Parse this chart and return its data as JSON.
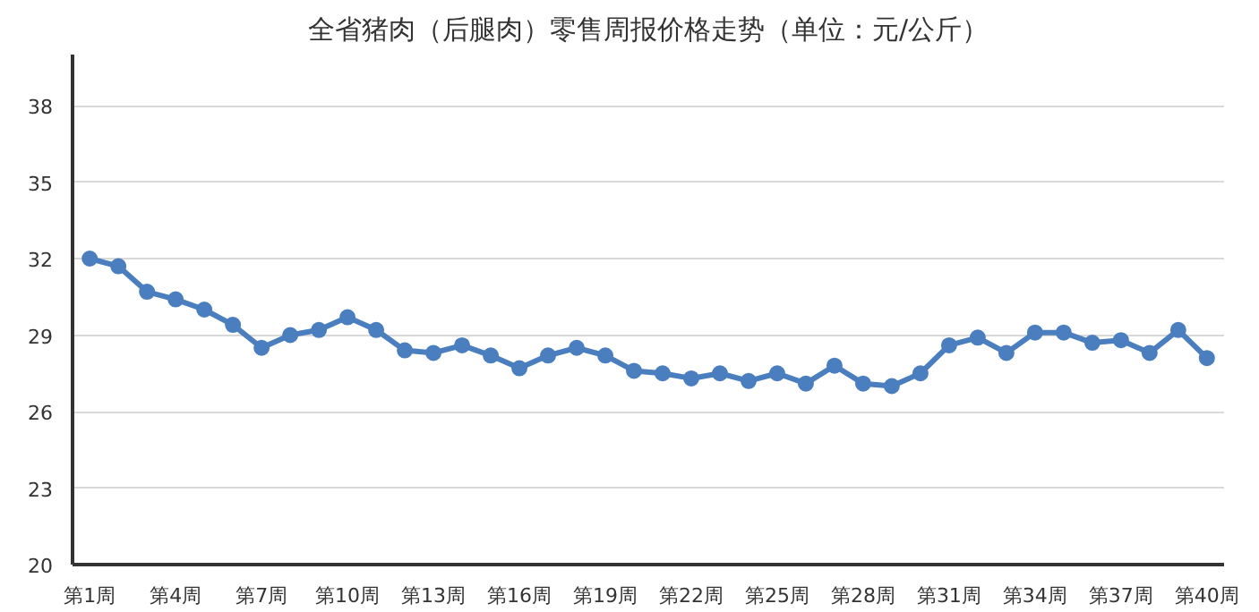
{
  "chart_data": {
    "type": "line",
    "title": "全省猪肉（后腿肉）零售周报价格走势（单位：元/公斤）",
    "categories": [
      "第1周",
      null,
      null,
      "第4周",
      null,
      null,
      "第7周",
      null,
      null,
      "第10周",
      null,
      null,
      "第13周",
      null,
      null,
      "第16周",
      null,
      null,
      "第19周",
      null,
      null,
      "第22周",
      null,
      null,
      "第25周",
      null,
      null,
      "第28周",
      null,
      null,
      "第31周",
      null,
      null,
      "第34周",
      null,
      null,
      "第37周",
      null,
      null,
      "第40周"
    ],
    "series": [
      {
        "color": "#4a7ebf",
        "values": [
          32.0,
          31.7,
          30.7,
          30.4,
          30.0,
          29.4,
          28.5,
          29.0,
          29.2,
          29.7,
          29.2,
          28.4,
          28.3,
          28.6,
          28.2,
          27.7,
          28.2,
          28.5,
          28.2,
          27.6,
          27.5,
          27.3,
          27.5,
          27.2,
          27.5,
          27.1,
          27.8,
          27.1,
          27.0,
          27.5,
          28.6,
          28.9,
          28.3,
          29.1,
          29.1,
          28.7,
          28.8,
          28.3,
          29.2,
          28.1
        ]
      }
    ],
    "ylim": [
      20,
      40
    ],
    "yticks": [
      20,
      23,
      26,
      29,
      32,
      35,
      38
    ],
    "grid": "y",
    "marker": "circle",
    "line_style": "solid"
  }
}
